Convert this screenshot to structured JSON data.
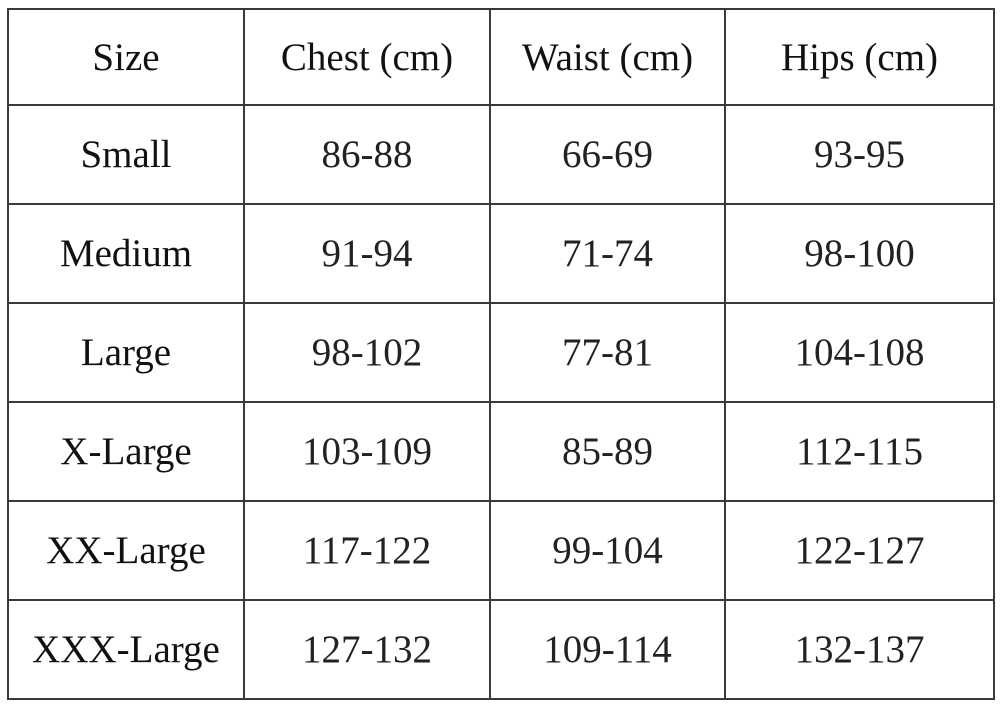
{
  "table": {
    "header": [
      "Size",
      "Chest (cm)",
      "Waist (cm)",
      "Hips (cm)"
    ],
    "rows": [
      [
        "Small",
        "86-88",
        "66-69",
        "93-95"
      ],
      [
        "Medium",
        "91-94",
        "71-74",
        "98-100"
      ],
      [
        "Large",
        "98-102",
        "77-81",
        "104-108"
      ],
      [
        "X-Large",
        "103-109",
        "85-89",
        "112-115"
      ],
      [
        "XX-Large",
        "117-122",
        "99-104",
        "122-127"
      ],
      [
        "XXX-Large",
        "127-132",
        "109-114",
        "132-137"
      ]
    ]
  }
}
